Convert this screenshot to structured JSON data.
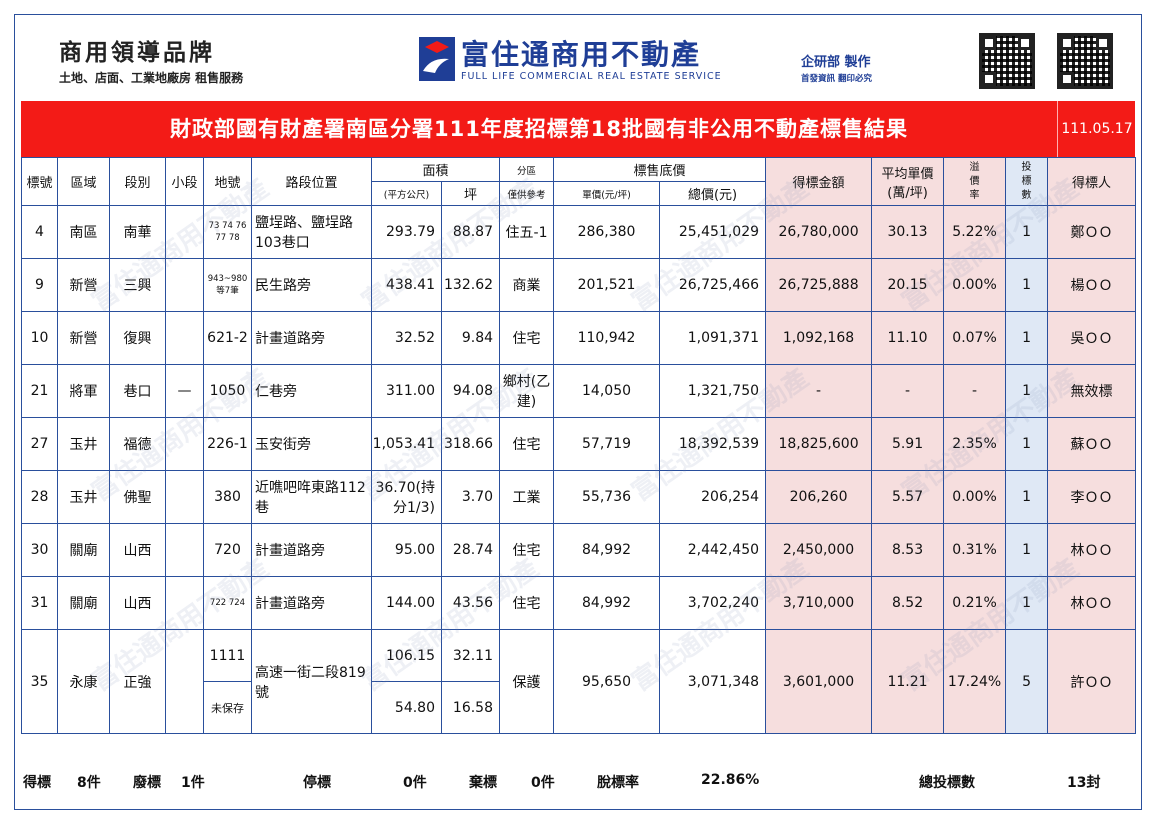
{
  "header": {
    "brand_title": "商用領導品牌",
    "brand_sub": "土地、店面、工業地廠房 租售服務",
    "company_name": "富住通商用不動產",
    "company_en": "FULL LIFE COMMERCIAL REAL ESTATE SERVICE",
    "maker": "企研部 製作",
    "maker_note": "首發資訊 翻印必究"
  },
  "title": "財政部國有財產署南區分署111年度招標第18批國有非公用不動產標售結果",
  "date": "111.05.17",
  "columns": {
    "bid_no": "標號",
    "district": "區域",
    "section": "段別",
    "subsection": "小段",
    "parcel": "地號",
    "location": "路段位置",
    "area": "面積",
    "area_m2": "(平方公尺)",
    "area_ping": "坪",
    "zoning": "分區",
    "zoning_note": "僅供參考",
    "floor_price": "標售底價",
    "unit_price": "單價(元/坪)",
    "total_price": "總價(元)",
    "winning_amount": "得標金額",
    "avg_unit_price": "平均單價",
    "avg_unit_price_unit": "(萬/坪)",
    "premium": "溢價率",
    "bids": "投標數",
    "winner": "得標人"
  },
  "rows": [
    {
      "bid_no": "4",
      "district": "南區",
      "section": "南華",
      "subsection": "",
      "parcel": "73 74 76 77 78",
      "location": "鹽埕路、鹽埕路103巷口",
      "area_m2": "293.79",
      "area_ping": "88.87",
      "zoning": "住五-1",
      "unit_price": "286,380",
      "total_price": "25,451,029",
      "winning_amount": "26,780,000",
      "avg_unit_price": "30.13",
      "premium": "5.22%",
      "bids": "1",
      "winner": "鄭ＯＯ"
    },
    {
      "bid_no": "9",
      "district": "新營",
      "section": "三興",
      "subsection": "",
      "parcel": "943~980等7筆",
      "location": "民生路旁",
      "area_m2": "438.41",
      "area_ping": "132.62",
      "zoning": "商業",
      "unit_price": "201,521",
      "total_price": "26,725,466",
      "winning_amount": "26,725,888",
      "avg_unit_price": "20.15",
      "premium": "0.00%",
      "bids": "1",
      "winner": "楊ＯＯ"
    },
    {
      "bid_no": "10",
      "district": "新營",
      "section": "復興",
      "subsection": "",
      "parcel": "621-2",
      "location": "計畫道路旁",
      "area_m2": "32.52",
      "area_ping": "9.84",
      "zoning": "住宅",
      "unit_price": "110,942",
      "total_price": "1,091,371",
      "winning_amount": "1,092,168",
      "avg_unit_price": "11.10",
      "premium": "0.07%",
      "bids": "1",
      "winner": "吳ＯＯ"
    },
    {
      "bid_no": "21",
      "district": "將軍",
      "section": "巷口",
      "subsection": "—",
      "parcel": "1050",
      "location": "仁巷旁",
      "area_m2": "311.00",
      "area_ping": "94.08",
      "zoning": "鄉村(乙建)",
      "unit_price": "14,050",
      "total_price": "1,321,750",
      "winning_amount": "-",
      "avg_unit_price": "-",
      "premium": "-",
      "bids": "1",
      "winner": "無效標"
    },
    {
      "bid_no": "27",
      "district": "玉井",
      "section": "福德",
      "subsection": "",
      "parcel": "226-1",
      "location": "玉安街旁",
      "area_m2": "1,053.41",
      "area_ping": "318.66",
      "zoning": "住宅",
      "unit_price": "57,719",
      "total_price": "18,392,539",
      "winning_amount": "18,825,600",
      "avg_unit_price": "5.91",
      "premium": "2.35%",
      "bids": "1",
      "winner": "蘇ＯＯ"
    },
    {
      "bid_no": "28",
      "district": "玉井",
      "section": "佛聖",
      "subsection": "",
      "parcel": "380",
      "location": "近噍吧哖東路112巷",
      "area_m2": "36.70(持分1/3)",
      "area_ping": "3.70",
      "zoning": "工業",
      "unit_price": "55,736",
      "total_price": "206,254",
      "winning_amount": "206,260",
      "avg_unit_price": "5.57",
      "premium": "0.00%",
      "bids": "1",
      "winner": "李ＯＯ"
    },
    {
      "bid_no": "30",
      "district": "關廟",
      "section": "山西",
      "subsection": "",
      "parcel": "720",
      "location": "計畫道路旁",
      "area_m2": "95.00",
      "area_ping": "28.74",
      "zoning": "住宅",
      "unit_price": "84,992",
      "total_price": "2,442,450",
      "winning_amount": "2,450,000",
      "avg_unit_price": "8.53",
      "premium": "0.31%",
      "bids": "1",
      "winner": "林ＯＯ"
    },
    {
      "bid_no": "31",
      "district": "關廟",
      "section": "山西",
      "subsection": "",
      "parcel": "722 724",
      "location": "計畫道路旁",
      "area_m2": "144.00",
      "area_ping": "43.56",
      "zoning": "住宅",
      "unit_price": "84,992",
      "total_price": "3,702,240",
      "winning_amount": "3,710,000",
      "avg_unit_price": "8.52",
      "premium": "0.21%",
      "bids": "1",
      "winner": "林ＯＯ"
    }
  ],
  "row35": {
    "bid_no": "35",
    "district": "永康",
    "section": "正強",
    "parcel_a": "1111",
    "parcel_b": "未保存",
    "location": "高速一街二段819號",
    "area_m2_a": "106.15",
    "area_ping_a": "32.11",
    "area_m2_b": "54.80",
    "area_ping_b": "16.58",
    "zoning": "保護",
    "unit_price": "95,650",
    "total_price": "3,071,348",
    "winning_amount": "3,601,000",
    "avg_unit_price": "11.21",
    "premium": "17.24%",
    "bids": "5",
    "winner": "許ＯＯ"
  },
  "footer": {
    "won_label": "得標",
    "won_value": "8件",
    "void_label": "廢標",
    "void_value": "1件",
    "stop_label": "停標",
    "stop_value": "0件",
    "drop_label": "棄標",
    "drop_value": "0件",
    "rate_label": "脫標率",
    "rate_value": "22.86%",
    "total_label": "總投標數",
    "total_value": "13封"
  },
  "colors": {
    "title_bg": "#f31b17",
    "border": "#2a4f9c",
    "pink": "#f6dede",
    "blue": "#dfe8f5",
    "brand": "#1f3e96"
  }
}
